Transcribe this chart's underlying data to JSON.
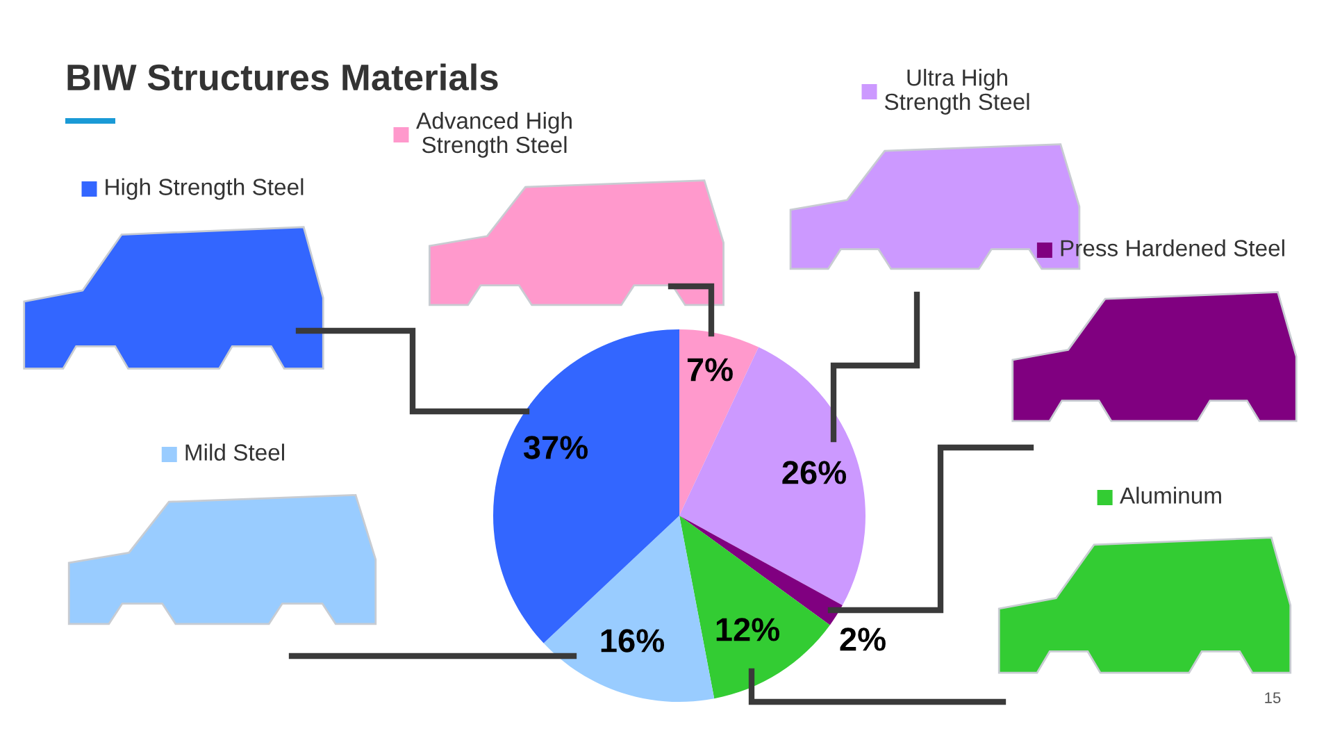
{
  "chart_data": {
    "type": "pie",
    "title": "BIW Structures Materials",
    "categories": [
      "Advanced High\nStrength Steel",
      "Ultra High\nStrength Steel",
      "Press Hardened Steel",
      "Aluminum",
      "Mild Steel",
      "High Strength Steel"
    ],
    "values": [
      7,
      26,
      2,
      12,
      16,
      37
    ],
    "colors": [
      "#ff99cc",
      "#cc99ff",
      "#800080",
      "#33cc33",
      "#99ccff",
      "#3366ff"
    ],
    "value_labels": [
      "7%",
      "26%",
      "2%",
      "12%",
      "16%",
      "37%"
    ],
    "legend": "top",
    "annotations": [
      "15"
    ]
  }
}
